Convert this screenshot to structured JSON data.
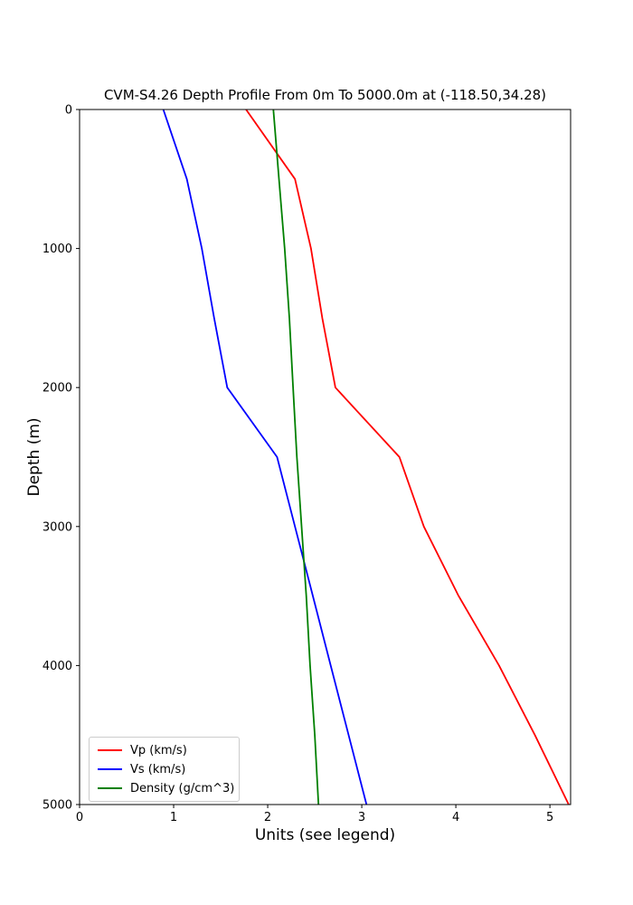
{
  "figure": {
    "background": "#ffffff",
    "axes_color": "#000000"
  },
  "chart_data": {
    "type": "line",
    "title": "CVM-S4.26 Depth Profile From 0m To 5000.0m at (-118.50,34.28)",
    "xlabel": "Units (see legend)",
    "ylabel": "Depth (m)",
    "orientation": "depth profile: y axis is depth in meters increasing downward, x axis is value",
    "xlim": [
      0,
      5.22
    ],
    "ylim": [
      0,
      5000
    ],
    "x_ticks": [
      0,
      1,
      2,
      3,
      4,
      5
    ],
    "y_ticks": [
      0,
      1000,
      2000,
      3000,
      4000,
      5000
    ],
    "grid": false,
    "legend_position": "lower left",
    "depths_m": [
      0,
      500,
      1000,
      1500,
      2000,
      2500,
      3000,
      3500,
      4000,
      4500,
      5000
    ],
    "series": [
      {
        "name": "Vp (km/s)",
        "color": "#ff0000",
        "values": [
          1.77,
          2.29,
          2.46,
          2.58,
          2.72,
          3.4,
          3.66,
          4.03,
          4.46,
          4.84,
          5.2
        ]
      },
      {
        "name": "Vs (km/s)",
        "color": "#0000ff",
        "values": [
          0.89,
          1.14,
          1.3,
          1.43,
          1.57,
          2.1,
          2.29,
          2.48,
          2.67,
          2.86,
          3.05
        ]
      },
      {
        "name": "Density (g/cm^3)",
        "color": "#008000",
        "values": [
          2.06,
          2.12,
          2.18,
          2.23,
          2.27,
          2.31,
          2.36,
          2.41,
          2.45,
          2.5,
          2.54
        ]
      }
    ]
  }
}
